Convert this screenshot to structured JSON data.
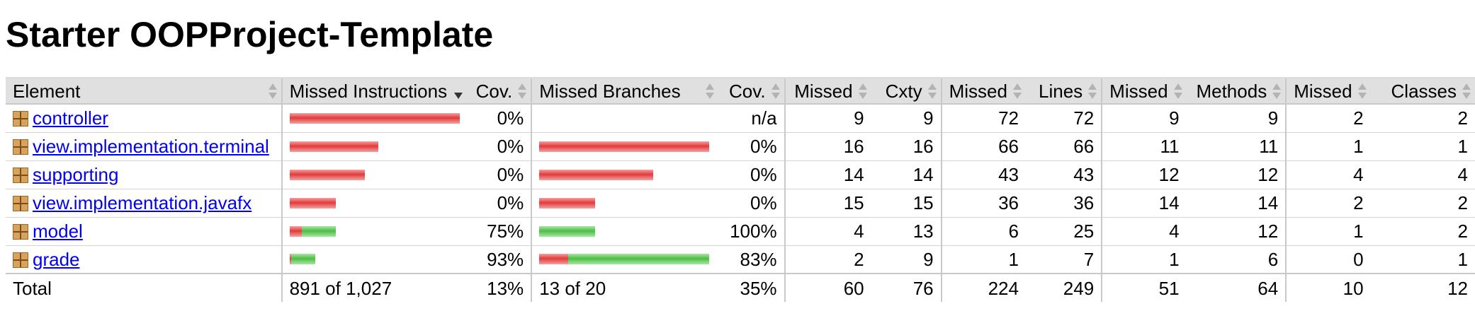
{
  "title": "Starter OOPProject-Template",
  "columns": [
    "Element",
    "Missed Instructions",
    "Cov.",
    "Missed Branches",
    "Cov.",
    "Missed",
    "Cxty",
    "Missed",
    "Lines",
    "Missed",
    "Methods",
    "Missed",
    "Classes"
  ],
  "sorted_column": "Missed Instructions",
  "rows": [
    {
      "name": "controller",
      "icon": "package-icon",
      "instr_missed_ratio": 1.0,
      "instr_covered_ratio": 0.0,
      "instr_cov": "0%",
      "branch_missed_ratio": 0.0,
      "branch_covered_ratio": 0.0,
      "branch_cov": "n/a",
      "cxty_missed": "9",
      "cxty": "9",
      "lines_missed": "72",
      "lines": "72",
      "methods_missed": "9",
      "methods": "9",
      "classes_missed": "2",
      "classes": "2"
    },
    {
      "name": "view.implementation.terminal",
      "icon": "package-icon",
      "instr_missed_ratio": 0.52,
      "instr_covered_ratio": 0.0,
      "instr_cov": "0%",
      "branch_missed_ratio": 1.0,
      "branch_covered_ratio": 0.0,
      "branch_cov": "0%",
      "cxty_missed": "16",
      "cxty": "16",
      "lines_missed": "66",
      "lines": "66",
      "methods_missed": "11",
      "methods": "11",
      "classes_missed": "1",
      "classes": "1"
    },
    {
      "name": "supporting",
      "icon": "package-icon",
      "instr_missed_ratio": 0.44,
      "instr_covered_ratio": 0.0,
      "instr_cov": "0%",
      "branch_missed_ratio": 0.67,
      "branch_covered_ratio": 0.0,
      "branch_cov": "0%",
      "cxty_missed": "14",
      "cxty": "14",
      "lines_missed": "43",
      "lines": "43",
      "methods_missed": "12",
      "methods": "12",
      "classes_missed": "4",
      "classes": "4"
    },
    {
      "name": "view.implementation.javafx",
      "icon": "package-icon",
      "instr_missed_ratio": 0.27,
      "instr_covered_ratio": 0.0,
      "instr_cov": "0%",
      "branch_missed_ratio": 0.33,
      "branch_covered_ratio": 0.0,
      "branch_cov": "0%",
      "cxty_missed": "15",
      "cxty": "15",
      "lines_missed": "36",
      "lines": "36",
      "methods_missed": "14",
      "methods": "14",
      "classes_missed": "2",
      "classes": "2"
    },
    {
      "name": "model",
      "icon": "package-icon",
      "instr_missed_ratio": 0.07,
      "instr_covered_ratio": 0.2,
      "instr_cov": "75%",
      "branch_missed_ratio": 0.0,
      "branch_covered_ratio": 0.33,
      "branch_cov": "100%",
      "cxty_missed": "4",
      "cxty": "13",
      "lines_missed": "6",
      "lines": "25",
      "methods_missed": "4",
      "methods": "12",
      "classes_missed": "1",
      "classes": "2"
    },
    {
      "name": "grade",
      "icon": "package-icon",
      "instr_missed_ratio": 0.01,
      "instr_covered_ratio": 0.14,
      "instr_cov": "93%",
      "branch_missed_ratio": 0.17,
      "branch_covered_ratio": 0.83,
      "branch_cov": "83%",
      "cxty_missed": "2",
      "cxty": "9",
      "lines_missed": "1",
      "lines": "7",
      "methods_missed": "1",
      "methods": "6",
      "classes_missed": "0",
      "classes": "1"
    }
  ],
  "total": {
    "label": "Total",
    "instr": "891 of 1,027",
    "instr_cov": "13%",
    "branch": "13 of 20",
    "branch_cov": "35%",
    "cxty_missed": "60",
    "cxty": "76",
    "lines_missed": "224",
    "lines": "249",
    "methods_missed": "51",
    "methods": "64",
    "classes_missed": "10",
    "classes": "12"
  },
  "colors": {
    "missed": "#e23b3b",
    "covered": "#4fbd47",
    "header_bg": "#e0e0e0",
    "link": "#0000ee"
  }
}
